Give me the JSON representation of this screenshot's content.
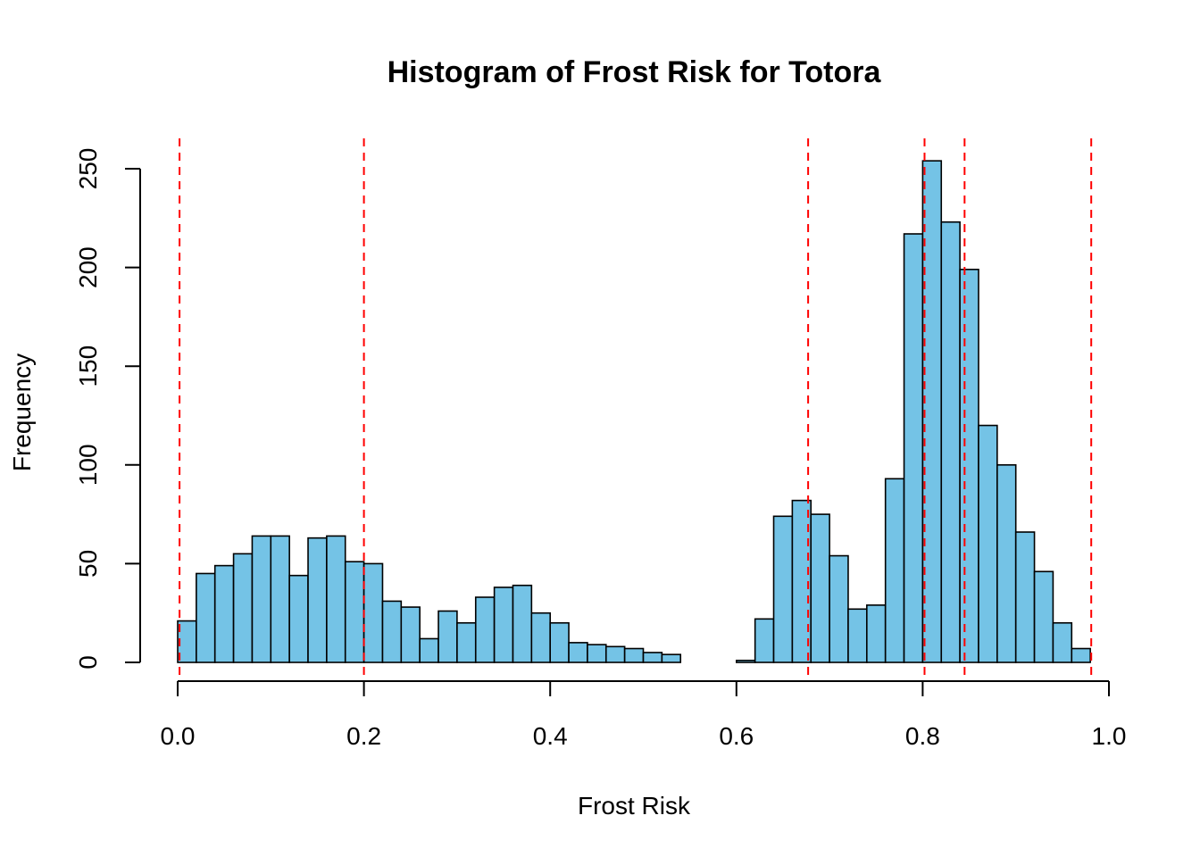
{
  "chart_data": {
    "type": "bar",
    "title": "Histogram of Frost Risk for Totora",
    "xlabel": "Frost Risk",
    "ylabel": "Frequency",
    "xlim": [
      0.0,
      1.0
    ],
    "ylim": [
      0,
      250
    ],
    "x_ticks": [
      0.0,
      0.2,
      0.4,
      0.6,
      0.8,
      1.0
    ],
    "x_tick_labels": [
      "0.0",
      "0.2",
      "0.4",
      "0.6",
      "0.8",
      "1.0"
    ],
    "y_ticks": [
      0,
      50,
      100,
      150,
      200,
      250
    ],
    "y_tick_labels": [
      "0",
      "50",
      "100",
      "150",
      "200",
      "250"
    ],
    "bin_width": 0.02,
    "bin_start": 0.0,
    "values": [
      21,
      45,
      49,
      55,
      64,
      64,
      44,
      63,
      64,
      51,
      50,
      31,
      28,
      12,
      26,
      20,
      33,
      38,
      39,
      25,
      20,
      10,
      9,
      8,
      7,
      5,
      4,
      0,
      0,
      0,
      1,
      22,
      74,
      82,
      75,
      54,
      27,
      29,
      93,
      217,
      254,
      223,
      199,
      120,
      100,
      66,
      46,
      20,
      7
    ],
    "bar_color": "#74C3E6",
    "reference_lines": [
      0.002,
      0.2,
      0.677,
      0.802,
      0.845,
      0.981
    ],
    "reference_line_color": "#FF0000",
    "grid": false
  }
}
